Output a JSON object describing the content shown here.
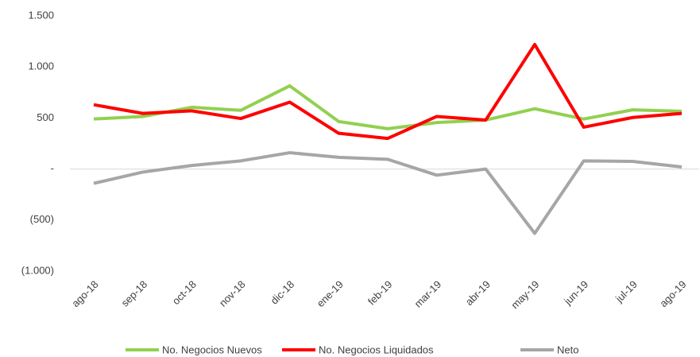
{
  "chart_data": {
    "type": "line",
    "categories": [
      "ago-18",
      "sep-18",
      "oct-18",
      "nov-18",
      "dic-18",
      "ene-19",
      "feb-19",
      "mar-19",
      "abr-19",
      "may-19",
      "jun-19",
      "jul-19",
      "ago-19"
    ],
    "series": [
      {
        "name": "No. Negocios Nuevos",
        "color": "#92d050",
        "values": [
          490,
          515,
          605,
          575,
          815,
          465,
          395,
          455,
          480,
          590,
          490,
          580,
          565
        ]
      },
      {
        "name": "No. Negocios Liquidados",
        "color": "#ff0000",
        "values": [
          630,
          545,
          570,
          495,
          655,
          350,
          300,
          515,
          480,
          1220,
          410,
          505,
          545
        ]
      },
      {
        "name": "Neto",
        "color": "#a6a6a6",
        "values": [
          -140,
          -30,
          35,
          80,
          160,
          115,
          95,
          -60,
          0,
          -630,
          80,
          75,
          20
        ]
      }
    ],
    "ylim": [
      -1000,
      1500
    ],
    "yticks": [
      {
        "value": -1000,
        "label": "(1.000)"
      },
      {
        "value": -500,
        "label": "(500)"
      },
      {
        "value": 0,
        "label": "-"
      },
      500,
      {
        "value": 1000,
        "label": "1.000"
      },
      {
        "value": 1500,
        "label": "1.500"
      }
    ],
    "legend": "bottom"
  }
}
